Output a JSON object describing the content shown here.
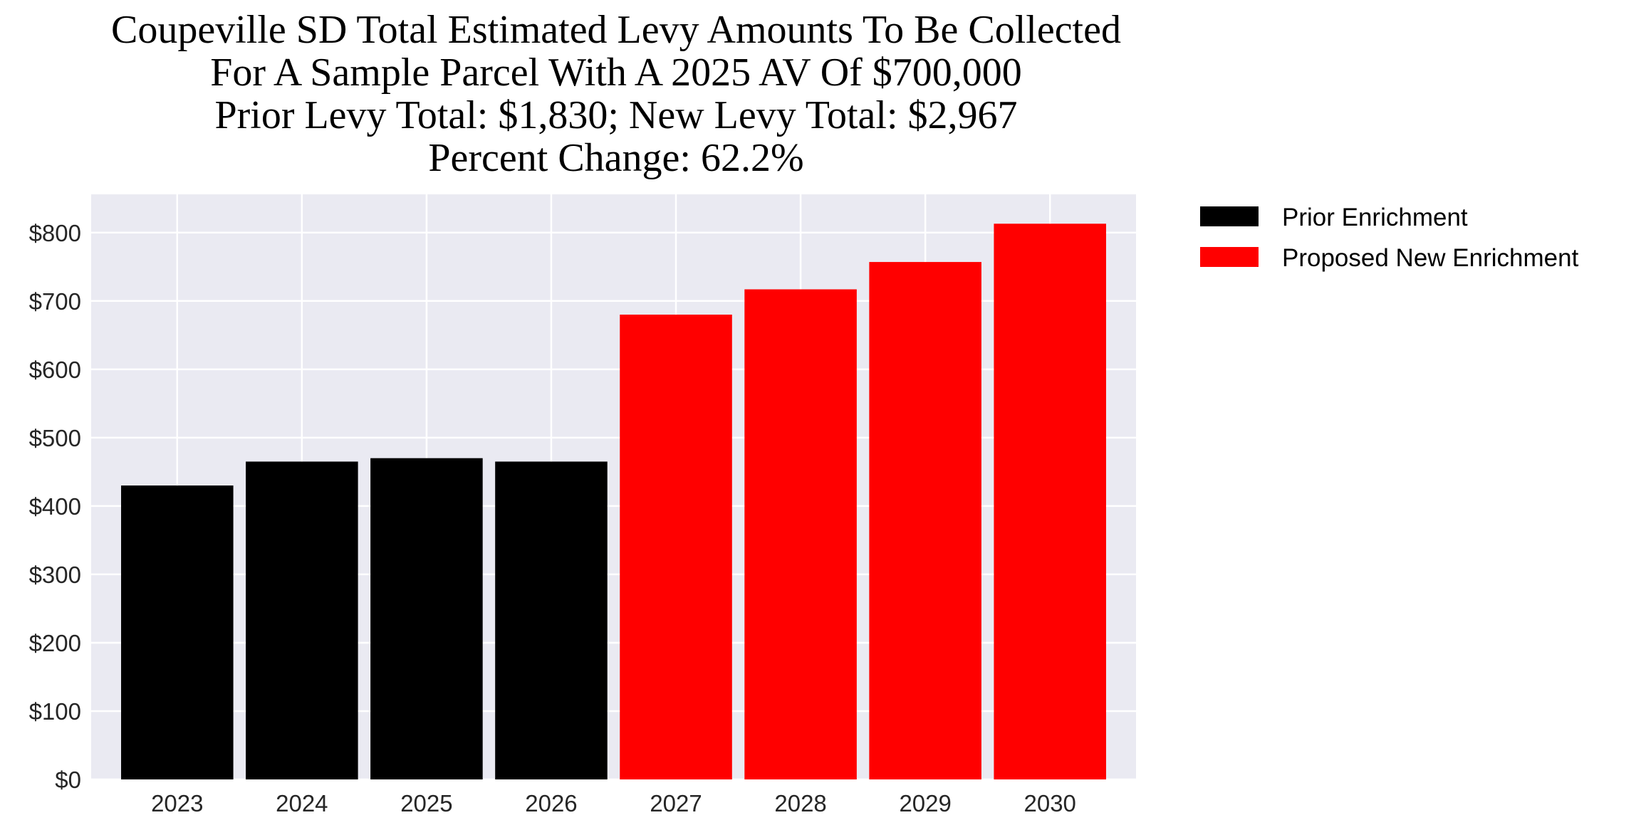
{
  "chart_data": {
    "type": "bar",
    "title_lines": [
      "Coupeville SD Total Estimated Levy Amounts To Be Collected",
      "For A Sample Parcel With A 2025 AV Of $700,000",
      "Prior Levy Total:  $1,830; New Levy Total: $2,967",
      "Percent Change: 62.2%"
    ],
    "categories": [
      "2023",
      "2024",
      "2025",
      "2026",
      "2027",
      "2028",
      "2029",
      "2030"
    ],
    "series": [
      {
        "name": "Prior Enrichment",
        "color": "#000000",
        "values": [
          430,
          465,
          470,
          465,
          null,
          null,
          null,
          null
        ]
      },
      {
        "name": "Proposed New Enrichment",
        "color": "#ff0000",
        "values": [
          null,
          null,
          null,
          null,
          680,
          717,
          757,
          813
        ]
      }
    ],
    "xlabel": "",
    "ylabel": "",
    "ylim": [
      0,
      856
    ],
    "yticks": [
      0,
      100,
      200,
      300,
      400,
      500,
      600,
      700,
      800
    ],
    "ytick_labels": [
      "$0",
      "$100",
      "$200",
      "$300",
      "$400",
      "$500",
      "$600",
      "$700",
      "$800"
    ],
    "grid": true,
    "background": "#eaeaf2",
    "legend_placement": "outside-top-right"
  }
}
